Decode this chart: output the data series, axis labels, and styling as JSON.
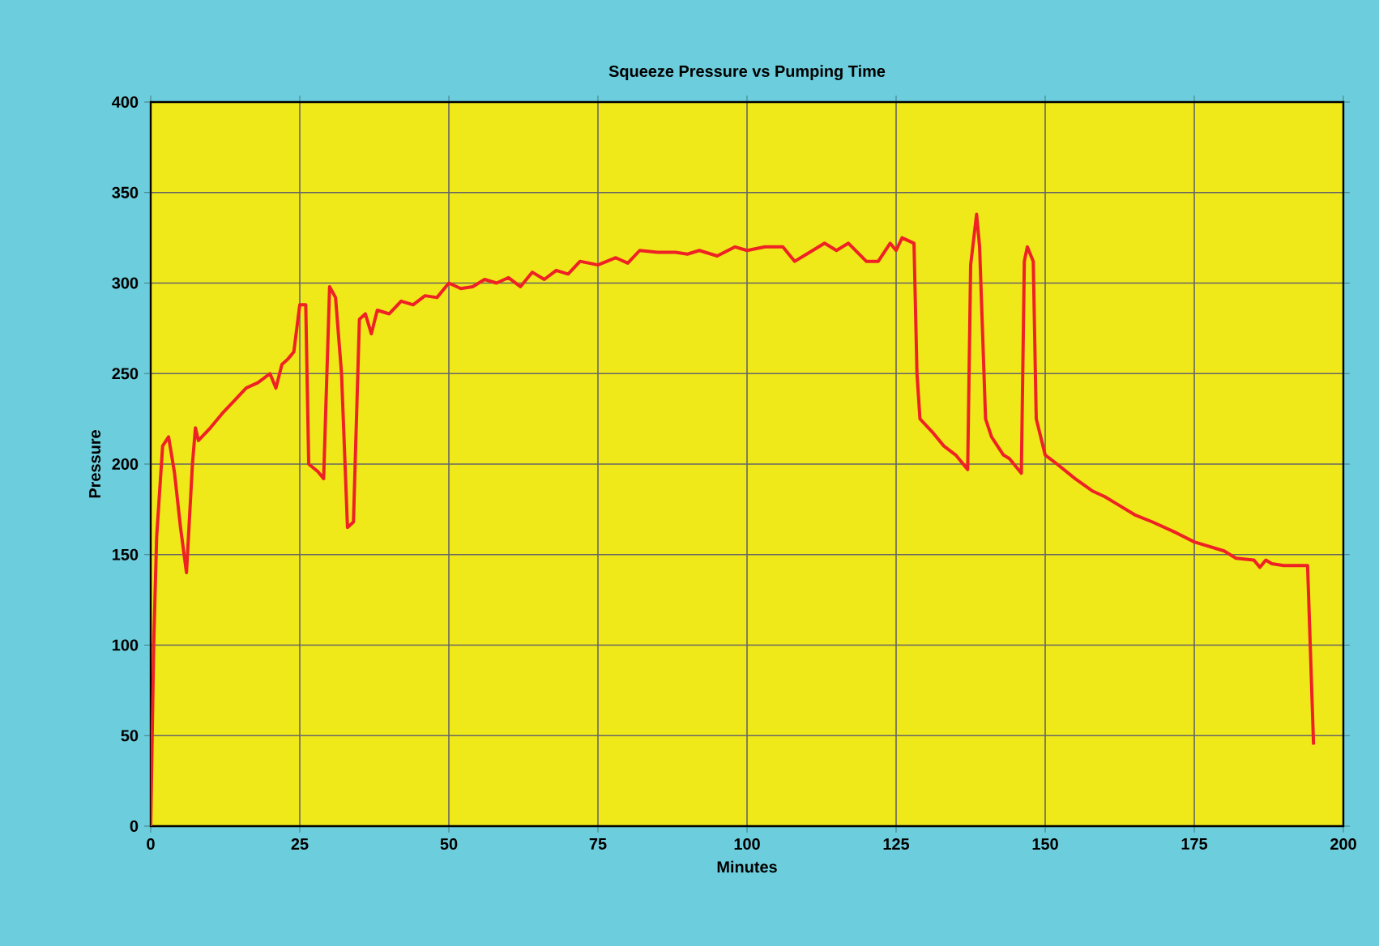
{
  "chart_data": {
    "type": "line",
    "title": "Squeeze Pressure vs Pumping Time",
    "xlabel": "Minutes",
    "ylabel": "Pressure",
    "x": [
      0,
      0.5,
      1,
      2,
      3,
      4,
      5,
      6,
      7,
      7.5,
      8,
      10,
      12,
      14,
      16,
      18,
      20,
      21,
      22,
      23,
      24,
      25,
      26,
      26.5,
      28,
      29,
      30,
      31,
      32,
      33,
      34,
      35,
      36,
      37,
      38,
      40,
      42,
      44,
      46,
      48,
      50,
      52,
      54,
      56,
      58,
      60,
      62,
      64,
      66,
      68,
      70,
      72,
      75,
      78,
      80,
      82,
      85,
      88,
      90,
      92,
      95,
      98,
      100,
      103,
      106,
      108,
      110,
      113,
      115,
      117,
      120,
      122,
      124,
      125,
      126,
      128,
      128.5,
      129,
      131,
      133,
      135,
      137,
      137.5,
      138.5,
      139,
      140,
      141,
      143,
      144,
      146,
      146.5,
      147,
      148,
      148.5,
      150,
      152,
      155,
      158,
      160,
      162,
      165,
      168,
      170,
      172,
      175,
      177,
      180,
      182,
      185,
      186,
      187,
      188,
      190,
      193,
      194,
      195
    ],
    "values": [
      0,
      100,
      160,
      210,
      215,
      195,
      165,
      140,
      200,
      220,
      213,
      220,
      228,
      235,
      242,
      245,
      250,
      242,
      255,
      258,
      262,
      288,
      288,
      200,
      196,
      192,
      298,
      292,
      250,
      165,
      168,
      280,
      283,
      272,
      285,
      283,
      290,
      288,
      293,
      292,
      300,
      297,
      298,
      302,
      300,
      303,
      298,
      306,
      302,
      307,
      305,
      312,
      310,
      314,
      311,
      318,
      317,
      317,
      316,
      318,
      315,
      320,
      318,
      320,
      320,
      312,
      316,
      322,
      318,
      322,
      312,
      312,
      322,
      318,
      325,
      322,
      250,
      225,
      218,
      210,
      205,
      197,
      310,
      338,
      320,
      225,
      215,
      205,
      203,
      195,
      312,
      320,
      312,
      225,
      205,
      200,
      192,
      185,
      182,
      178,
      172,
      168,
      165,
      162,
      157,
      155,
      152,
      148,
      147,
      143,
      147,
      145,
      144,
      144,
      144,
      45
    ],
    "color": "#ee2124",
    "xlim": [
      0,
      200
    ],
    "ylim": [
      0,
      400
    ],
    "xticks": [
      0,
      25,
      50,
      75,
      100,
      125,
      150,
      175,
      200
    ],
    "yticks": [
      0,
      50,
      100,
      150,
      200,
      250,
      300,
      350,
      400
    ],
    "grid": true,
    "marker": "none",
    "line_style": "solid"
  }
}
